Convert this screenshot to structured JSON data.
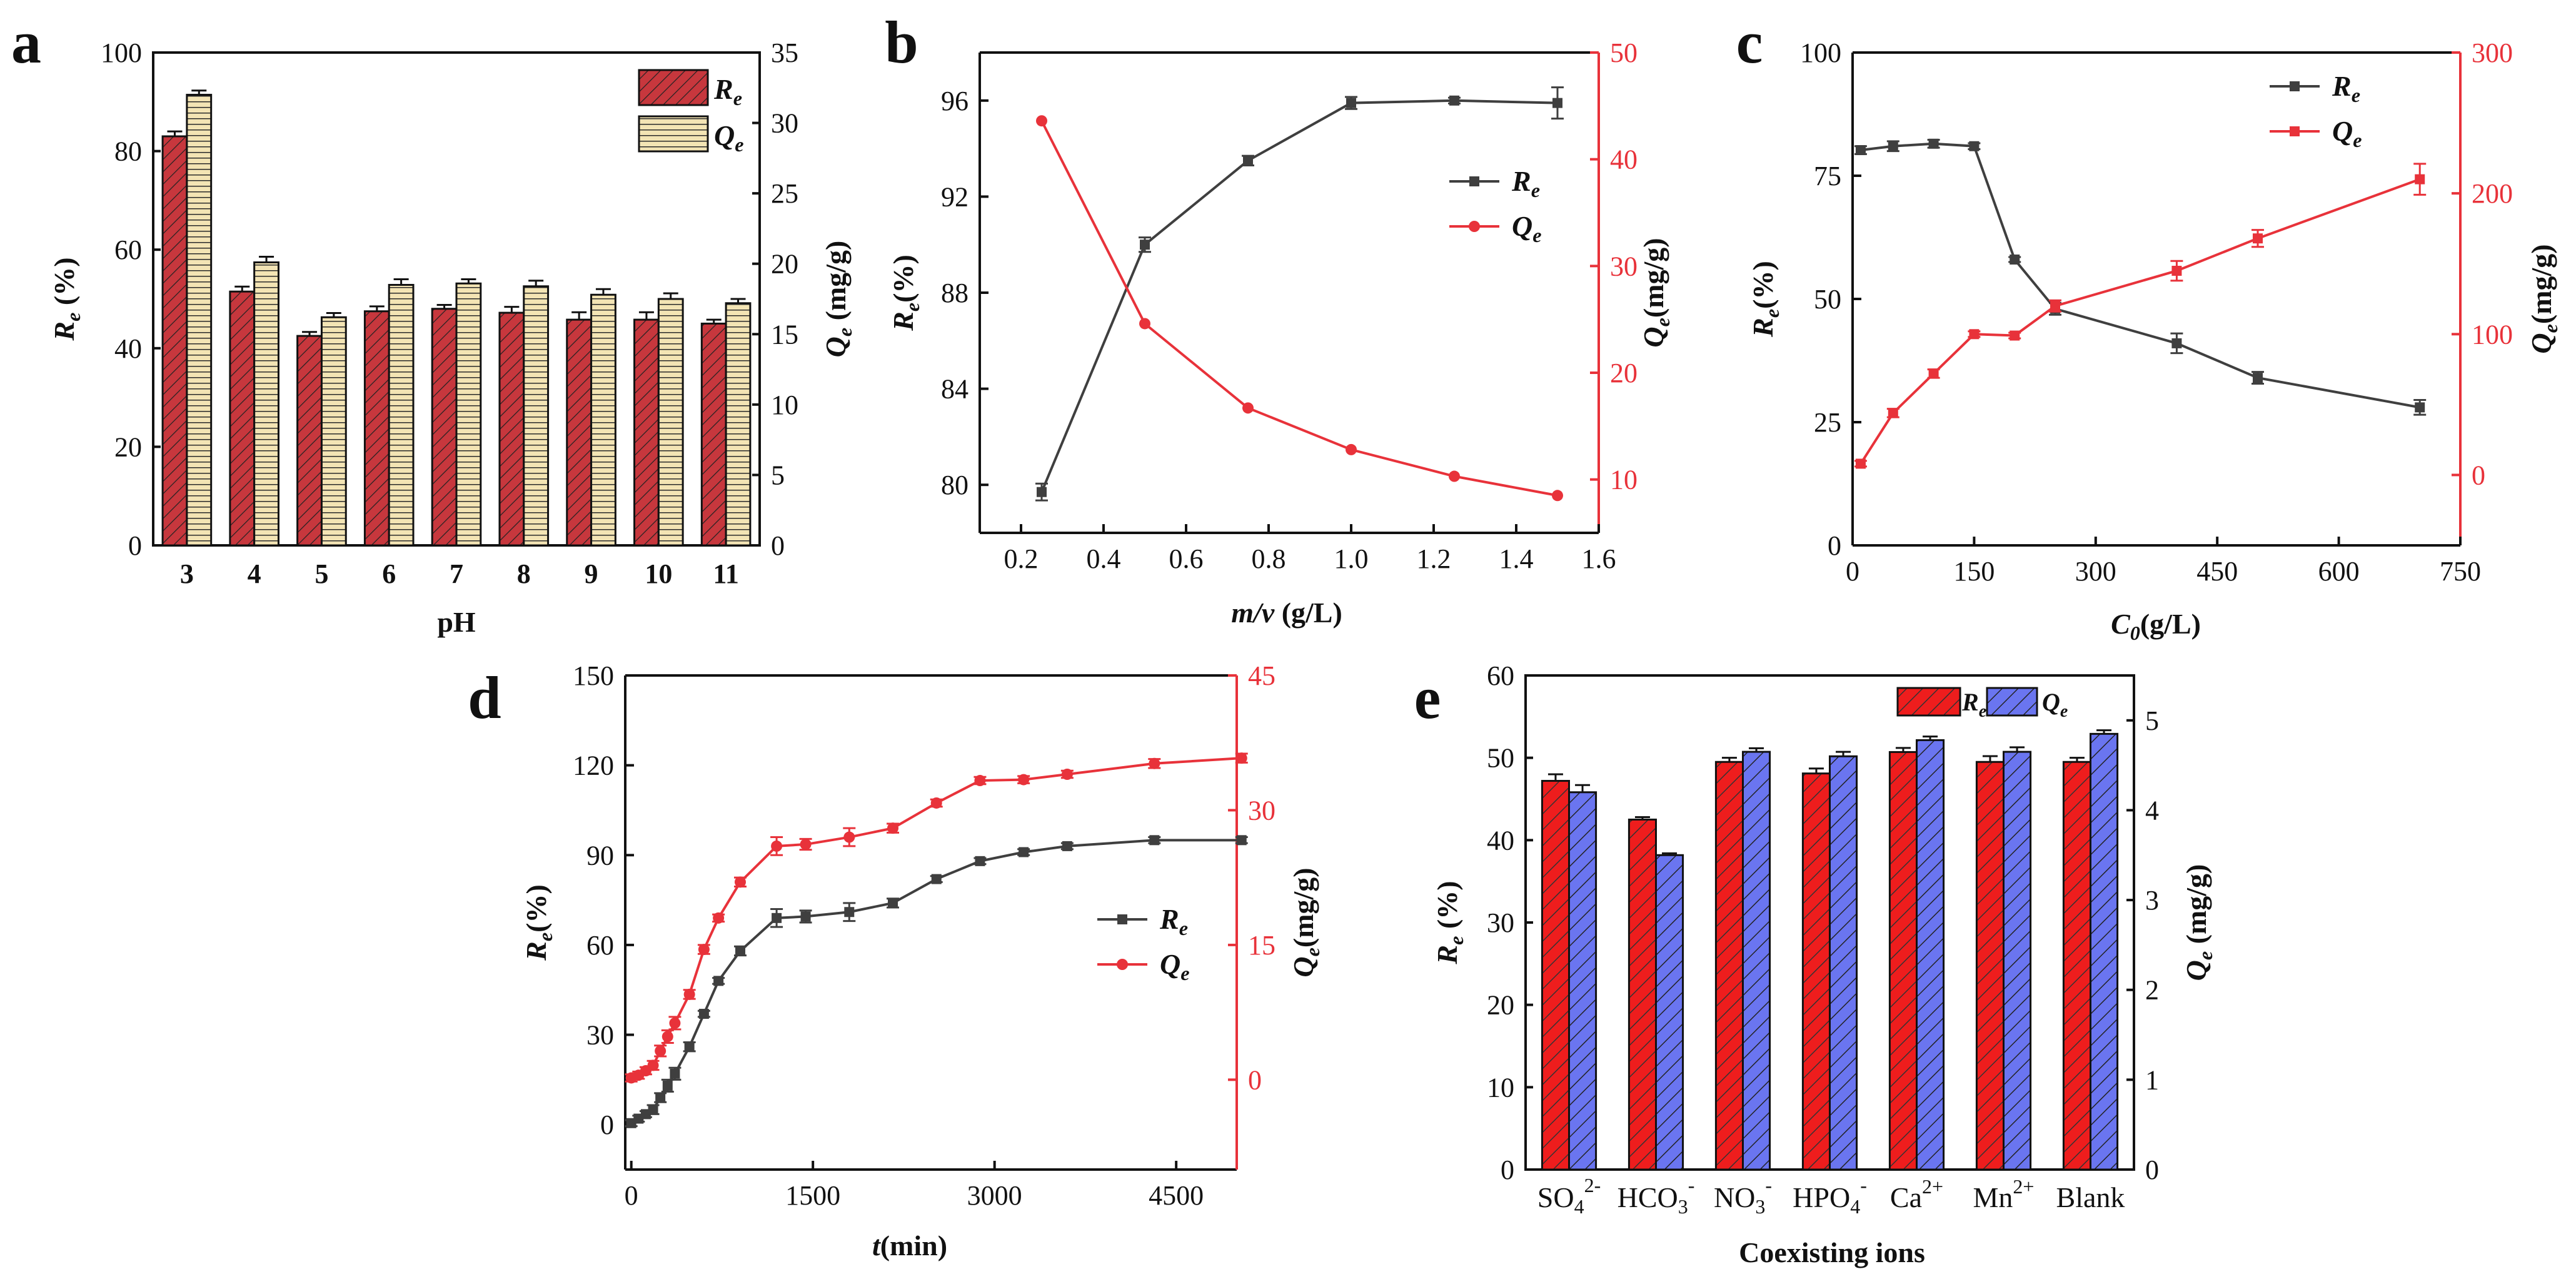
{
  "colors": {
    "red": "#e8323a",
    "darkgray": "#3f3f3f",
    "bar_red": "#c7373d",
    "bar_yellow": "#f3e4b4",
    "bar_red_e": "#ee1d1d",
    "bar_blue_e": "#6a75f0"
  },
  "chart_data": [
    {
      "panel": "a",
      "type": "bar",
      "xlabel": "pH",
      "ylabel_left_main": "R",
      "ylabel_left_sub": "e",
      "ylabel_left_unit": " (%)",
      "ylabel_right_main": "Q",
      "ylabel_right_sub": "e",
      "ylabel_right_unit": " (mg/g)",
      "categories": [
        "3",
        "4",
        "5",
        "6",
        "7",
        "8",
        "9",
        "10",
        "11"
      ],
      "ylim_left": [
        0,
        100
      ],
      "yticks_left": [
        "0",
        "20",
        "40",
        "60",
        "80",
        "100"
      ],
      "ylim_right": [
        0,
        35
      ],
      "yticks_right": [
        "0",
        "5",
        "10",
        "15",
        "20",
        "25",
        "30",
        "35"
      ],
      "series": [
        {
          "name": "Re",
          "legend_main": "R",
          "legend_sub": "e",
          "axis": "left",
          "values": [
            83,
            51.5,
            42.5,
            47.5,
            48,
            47.2,
            45.8,
            45.8,
            45
          ],
          "errors": [
            1,
            1,
            0.8,
            1,
            0.8,
            1.2,
            1.5,
            1.5,
            0.8
          ]
        },
        {
          "name": "Qe",
          "legend_main": "Q",
          "legend_sub": "e",
          "axis": "right",
          "values": [
            32,
            20.1,
            16.2,
            18.5,
            18.6,
            18.4,
            17.8,
            17.5,
            17.2
          ],
          "errors": [
            0.3,
            0.4,
            0.3,
            0.4,
            0.3,
            0.4,
            0.4,
            0.4,
            0.3
          ]
        }
      ]
    },
    {
      "panel": "b",
      "type": "line",
      "xlabel_main": "m/v",
      "xlabel_unit": " (g/L)",
      "ylabel_left_main": "R",
      "ylabel_left_sub": "e",
      "ylabel_left_unit": "(%)",
      "ylabel_right_main": "Q",
      "ylabel_right_sub": "e",
      "ylabel_right_unit": "(mg/g)",
      "xlim": [
        0.1,
        1.6
      ],
      "xticks": [
        "0.2",
        "0.4",
        "0.6",
        "0.8",
        "1.0",
        "1.2",
        "1.4",
        "1.6"
      ],
      "ylim_left": [
        78,
        98
      ],
      "yticks_left": [
        "80",
        "84",
        "88",
        "92",
        "96"
      ],
      "ylim_right": [
        5,
        50
      ],
      "yticks_right": [
        "10",
        "20",
        "30",
        "40",
        "50"
      ],
      "series": [
        {
          "name": "Re",
          "legend_main": "R",
          "legend_sub": "e",
          "axis": "left",
          "x": [
            0.25,
            0.5,
            0.75,
            1.0,
            1.25,
            1.5
          ],
          "values": [
            79.7,
            90,
            93.5,
            95.9,
            96,
            95.9
          ],
          "errors": [
            0.35,
            0.3,
            0.2,
            0.25,
            0.12,
            0.65
          ]
        },
        {
          "name": "Qe",
          "legend_main": "Q",
          "legend_sub": "e",
          "axis": "right",
          "x": [
            0.25,
            0.5,
            0.75,
            1.0,
            1.25,
            1.5
          ],
          "values": [
            43.6,
            24.6,
            16.7,
            12.8,
            10.3,
            8.5
          ],
          "errors": [
            0,
            0,
            0,
            0,
            0,
            0
          ]
        }
      ]
    },
    {
      "panel": "c",
      "type": "line",
      "xlabel_main": "C",
      "xlabel_sub": "0",
      "xlabel_unit": "(g/L)",
      "ylabel_left_main": "R",
      "ylabel_left_sub": "e",
      "ylabel_left_unit": "(%)",
      "ylabel_right_main": "Q",
      "ylabel_right_sub": "e",
      "ylabel_right_unit": "(mg/g)",
      "xlim": [
        0,
        750
      ],
      "xticks": [
        "0",
        "150",
        "300",
        "450",
        "600",
        "750"
      ],
      "ylim_left": [
        0,
        100
      ],
      "yticks_left": [
        "0",
        "25",
        "50",
        "75",
        "100"
      ],
      "ylim_right": [
        -50,
        300
      ],
      "yticks_right": [
        "0",
        "100",
        "200",
        "300"
      ],
      "series": [
        {
          "name": "Re",
          "legend_main": "R",
          "legend_sub": "e",
          "axis": "left",
          "x": [
            10,
            50,
            100,
            150,
            200,
            250,
            400,
            500,
            700
          ],
          "values": [
            80.2,
            81,
            81.5,
            81,
            58,
            48,
            41,
            34,
            28
          ],
          "errors": [
            0.8,
            1,
            0.8,
            0.6,
            0.5,
            1.2,
            2,
            1.2,
            1.5
          ]
        },
        {
          "name": "Qe",
          "legend_main": "Q",
          "legend_sub": "e",
          "axis": "right",
          "x": [
            10,
            50,
            100,
            150,
            200,
            250,
            400,
            500,
            700
          ],
          "values": [
            8,
            44,
            72,
            100,
            99,
            120,
            145,
            168,
            210
          ],
          "errors": [
            2,
            3,
            3,
            2,
            2,
            4,
            7,
            6,
            11
          ]
        }
      ]
    },
    {
      "panel": "d",
      "type": "line",
      "xlabel_main": "t",
      "xlabel_unit": "(min)",
      "ylabel_left_main": "R",
      "ylabel_left_sub": "e",
      "ylabel_left_unit": "(%)",
      "ylabel_right_main": "Q",
      "ylabel_right_sub": "e",
      "ylabel_right_unit": "(mg/g)",
      "xlim": [
        -50,
        5000
      ],
      "xticks": [
        "0",
        "1500",
        "3000",
        "4500"
      ],
      "ylim_left": [
        -15,
        150
      ],
      "yticks_left": [
        "0",
        "30",
        "60",
        "90",
        "120",
        "150"
      ],
      "ylim_right": [
        -10,
        45
      ],
      "yticks_right": [
        "0",
        "15",
        "30",
        "45"
      ],
      "series": [
        {
          "name": "Re",
          "legend_main": "R",
          "legend_sub": "e",
          "axis": "left",
          "x": [
            0,
            60,
            120,
            180,
            240,
            300,
            360,
            480,
            600,
            720,
            900,
            1200,
            1440,
            1800,
            2160,
            2520,
            2880,
            3240,
            3600,
            4320,
            5040
          ],
          "values": [
            0.5,
            2,
            3.5,
            5,
            9,
            13,
            17,
            26,
            37,
            48,
            58,
            69,
            69.5,
            71,
            74,
            82,
            88,
            91,
            93,
            95,
            95
          ],
          "errors": [
            1,
            1,
            1,
            1.5,
            1.5,
            2,
            2,
            1.5,
            1,
            1,
            1.5,
            3,
            2,
            3,
            1.5,
            1,
            1,
            1,
            1,
            1,
            1
          ]
        },
        {
          "name": "Qe",
          "legend_main": "Q",
          "legend_sub": "e",
          "axis": "right",
          "x": [
            0,
            60,
            120,
            180,
            240,
            300,
            360,
            480,
            600,
            720,
            900,
            1200,
            1440,
            1800,
            2160,
            2520,
            2880,
            3240,
            3600,
            4320,
            5040
          ],
          "values": [
            0.2,
            0.5,
            1,
            1.6,
            3.2,
            4.8,
            6.3,
            9.5,
            14.5,
            18,
            22,
            26,
            26.2,
            27,
            28,
            30.8,
            33.3,
            33.4,
            34,
            35.2,
            35.8
          ],
          "errors": [
            0.4,
            0.4,
            0.4,
            0.5,
            0.6,
            0.7,
            0.7,
            0.5,
            0.5,
            0.4,
            0.5,
            1,
            0.6,
            1,
            0.5,
            0.4,
            0.4,
            0.4,
            0.4,
            0.5,
            0.5
          ]
        }
      ]
    },
    {
      "panel": "e",
      "type": "bar",
      "xlabel": "Coexisting ions",
      "ylabel_left_main": "R",
      "ylabel_left_sub": "e",
      "ylabel_left_unit": " (%)",
      "ylabel_right_main": "Q",
      "ylabel_right_sub": "e",
      "ylabel_right_unit": " (mg/g)",
      "categories": [
        {
          "base": "SO",
          "sub": "4",
          "sup": "2-"
        },
        {
          "base": "HCO",
          "sub": "3",
          "sup": "-"
        },
        {
          "base": "NO",
          "sub": "3",
          "sup": "-"
        },
        {
          "base": "HPO",
          "sub": "4",
          "sup": "-"
        },
        {
          "base": "Ca",
          "sub": "",
          "sup": "2+"
        },
        {
          "base": "Mn",
          "sub": "",
          "sup": "2+"
        },
        {
          "base": "Blank",
          "sub": "",
          "sup": ""
        }
      ],
      "ylim_left": [
        0,
        60
      ],
      "yticks_left": [
        "0",
        "10",
        "20",
        "30",
        "40",
        "50",
        "60"
      ],
      "ylim_right": [
        0,
        5.5
      ],
      "yticks_right": [
        "0",
        "1",
        "2",
        "3",
        "4",
        "5"
      ],
      "series": [
        {
          "name": "Re",
          "legend_main": "R",
          "legend_sub": "e",
          "axis": "left",
          "values": [
            47.2,
            42.5,
            49.5,
            48.1,
            50.7,
            49.5,
            49.5
          ],
          "errors": [
            0.8,
            0.3,
            0.5,
            0.6,
            0.5,
            0.7,
            0.5
          ]
        },
        {
          "name": "Qe",
          "legend_main": "Q",
          "legend_sub": "e",
          "axis": "right",
          "values": [
            4.2,
            3.5,
            4.65,
            4.6,
            4.78,
            4.65,
            4.85
          ],
          "errors": [
            0.08,
            0.02,
            0.04,
            0.05,
            0.04,
            0.05,
            0.04
          ]
        }
      ]
    }
  ]
}
